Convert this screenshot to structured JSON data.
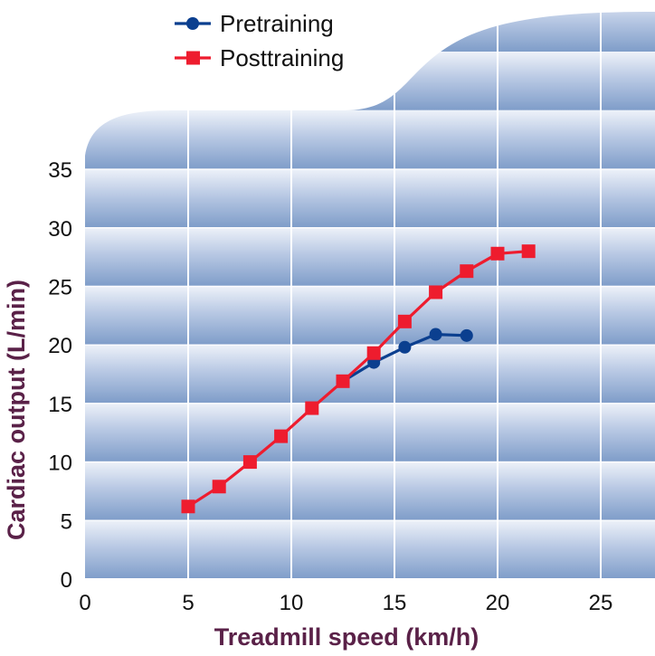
{
  "chart_data": {
    "type": "line",
    "xlabel": "Treadmill speed (km/h)",
    "ylabel": "Cardiac output (L/min)",
    "xlim": [
      0,
      27.5
    ],
    "ylim": [
      0,
      35
    ],
    "xticks": [
      0,
      5,
      10,
      15,
      20,
      25
    ],
    "yticks": [
      0,
      5,
      10,
      15,
      20,
      25,
      30,
      35
    ],
    "grid": true,
    "legend_position": "top-left",
    "background": "blue gradient banded panel",
    "series": [
      {
        "name": "Pretraining",
        "color": "#0b3f8f",
        "marker": "circle",
        "x": [
          12.5,
          14,
          15.5,
          17,
          18.5
        ],
        "y": [
          16.9,
          18.5,
          19.8,
          20.9,
          20.8
        ]
      },
      {
        "name": "Posttraining",
        "color": "#ee1c2e",
        "marker": "square",
        "x": [
          5,
          6.5,
          8,
          9.5,
          11,
          12.5,
          14,
          15.5,
          17,
          18.5,
          20,
          21.5
        ],
        "y": [
          6.2,
          7.9,
          10.0,
          12.2,
          14.6,
          16.9,
          19.3,
          22.0,
          24.5,
          26.3,
          27.8,
          28.0
        ]
      }
    ]
  }
}
